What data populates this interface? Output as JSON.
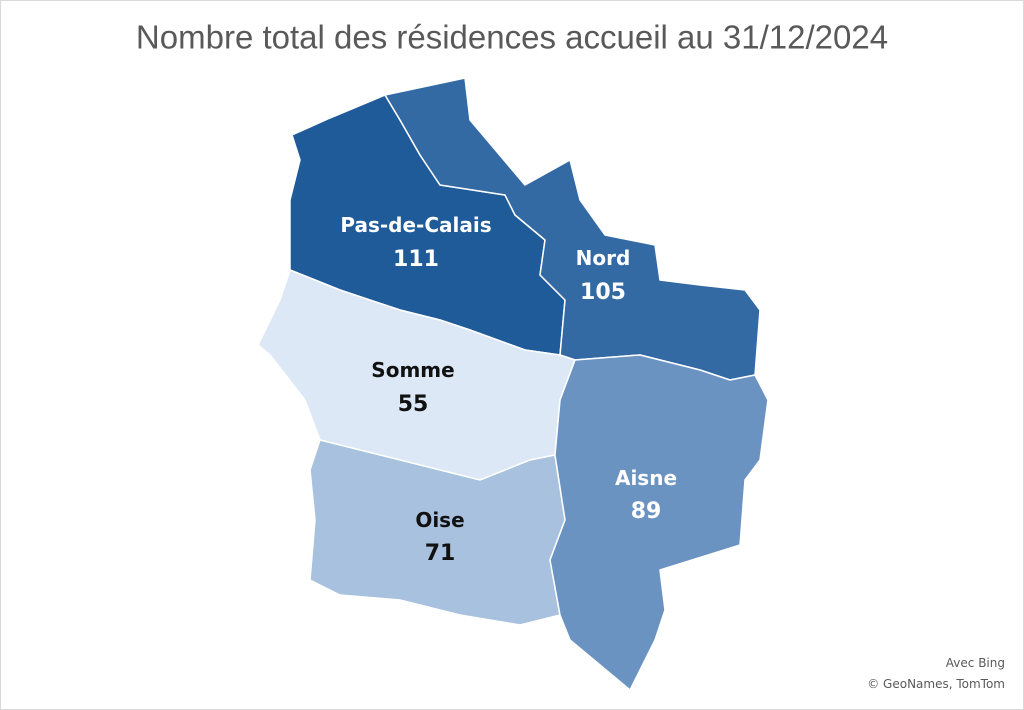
{
  "chart_data": {
    "type": "choropleth",
    "title": "Nombre total des résidences accueil au 31/12/2024",
    "categories": [
      "Pas-de-Calais",
      "Nord",
      "Somme",
      "Oise",
      "Aisne"
    ],
    "values": [
      111,
      105,
      55,
      71,
      89
    ],
    "colors": [
      "#1f5b98",
      "#336aa4",
      "#dce8f5",
      "#a8c1de",
      "#6a93c2"
    ],
    "attribution": [
      "Avec Bing",
      "© GeoNames, TomTom"
    ]
  }
}
